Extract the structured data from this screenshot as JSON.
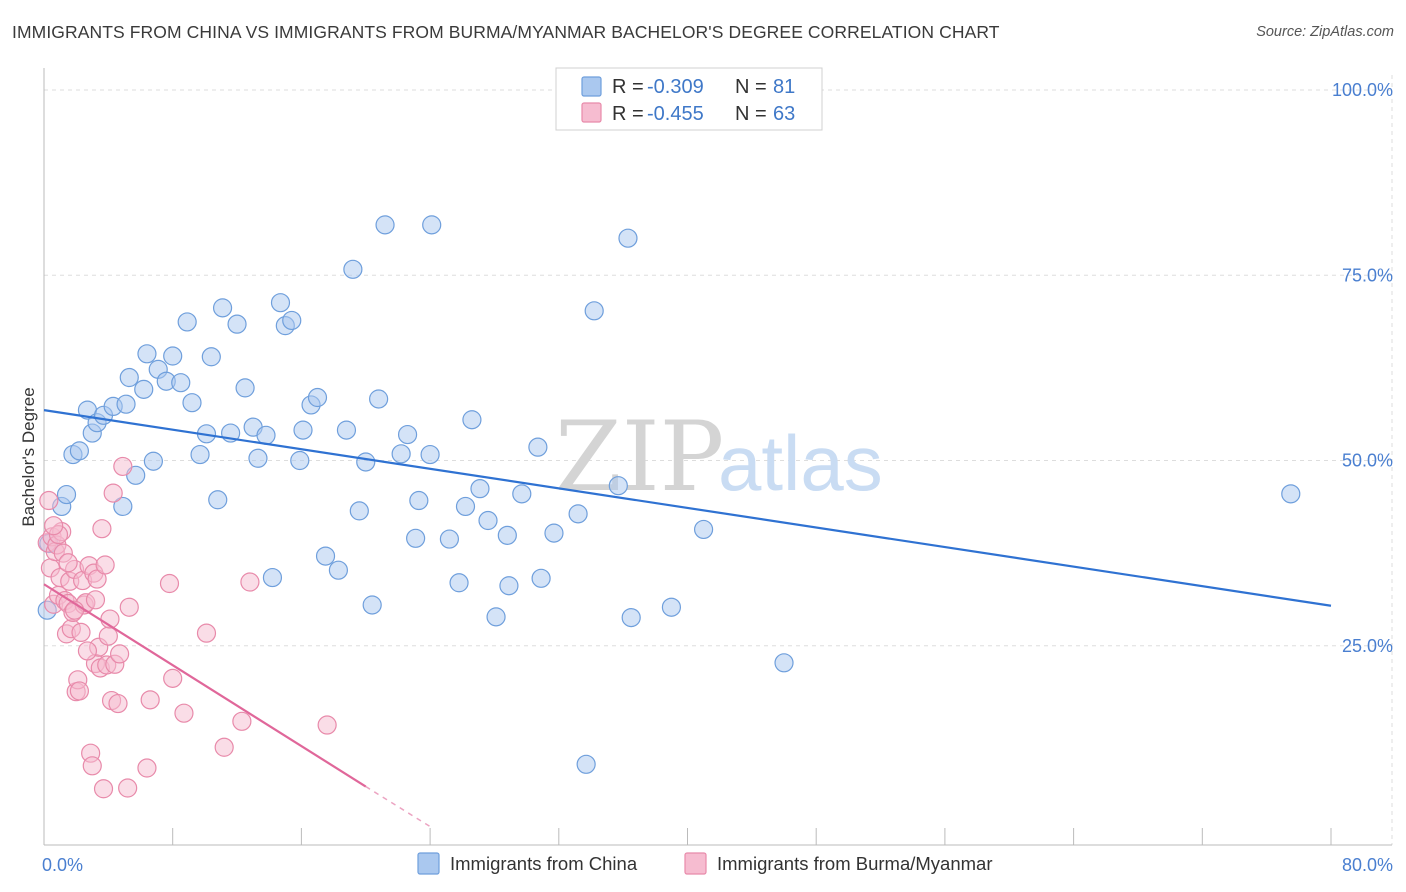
{
  "title": "IMMIGRANTS FROM CHINA VS IMMIGRANTS FROM BURMA/MYANMAR BACHELOR'S DEGREE CORRELATION CHART",
  "source": "Source: ZipAtlas.com",
  "watermark": {
    "zip": "ZIP",
    "atlas": "atlas"
  },
  "colors": {
    "china_fill": "#aac8ef",
    "china_stroke": "#6f9fdc",
    "china_line": "#2f72d2",
    "burma_fill": "#f6bcd0",
    "burma_stroke": "#e88aaa",
    "burma_line": "#e0679a",
    "tick_text": "#4a7fd0",
    "grid": "#dddddd"
  },
  "legend": {
    "rows": [
      {
        "r_label": "R = ",
        "r_value": "-0.309",
        "n_label": "N = ",
        "n_value": "81"
      },
      {
        "r_label": "R = ",
        "r_value": "-0.455",
        "n_label": "N = ",
        "n_value": "63"
      }
    ]
  },
  "chart_data": {
    "type": "scatter",
    "title": "IMMIGRANTS FROM CHINA VS IMMIGRANTS FROM BURMA/MYANMAR BACHELOR'S DEGREE CORRELATION CHART",
    "xlabel": "",
    "ylabel": "Bachelor's Degree",
    "xlim": [
      0,
      80
    ],
    "ylim": [
      0,
      100
    ],
    "x_tick_labels": [
      "0.0%",
      "80.0%"
    ],
    "y_ticks": [
      25,
      50,
      75,
      100
    ],
    "y_tick_labels": [
      "25.0%",
      "50.0%",
      "75.0%",
      "100.0%"
    ],
    "grid": true,
    "legend_position": "top-center",
    "series": [
      {
        "name": "Immigrants from China",
        "r": -0.309,
        "n": 81,
        "trend": {
          "x": [
            0,
            80
          ],
          "y": [
            56.8,
            30.4
          ]
        },
        "points": [
          [
            0.2,
            29.8
          ],
          [
            0.3,
            38.8
          ],
          [
            1.1,
            43.8
          ],
          [
            1.4,
            45.4
          ],
          [
            1.8,
            50.8
          ],
          [
            2.2,
            51.3
          ],
          [
            2.7,
            56.8
          ],
          [
            3.0,
            53.7
          ],
          [
            3.3,
            55.1
          ],
          [
            3.7,
            56.1
          ],
          [
            4.3,
            57.3
          ],
          [
            4.9,
            43.8
          ],
          [
            5.1,
            57.6
          ],
          [
            5.3,
            61.2
          ],
          [
            5.7,
            48.0
          ],
          [
            6.2,
            59.6
          ],
          [
            6.4,
            64.4
          ],
          [
            6.8,
            49.9
          ],
          [
            7.1,
            62.3
          ],
          [
            7.6,
            60.7
          ],
          [
            8.0,
            64.1
          ],
          [
            8.5,
            60.5
          ],
          [
            8.9,
            68.7
          ],
          [
            9.2,
            57.8
          ],
          [
            9.7,
            50.8
          ],
          [
            10.1,
            53.6
          ],
          [
            10.4,
            64.0
          ],
          [
            10.8,
            44.7
          ],
          [
            11.1,
            70.6
          ],
          [
            11.6,
            53.7
          ],
          [
            12.0,
            68.4
          ],
          [
            12.5,
            59.8
          ],
          [
            13.0,
            54.5
          ],
          [
            13.3,
            50.3
          ],
          [
            13.8,
            53.4
          ],
          [
            14.2,
            34.2
          ],
          [
            14.7,
            71.3
          ],
          [
            15.0,
            68.2
          ],
          [
            15.4,
            68.9
          ],
          [
            15.9,
            50.0
          ],
          [
            16.1,
            54.1
          ],
          [
            16.6,
            57.5
          ],
          [
            17.0,
            58.5
          ],
          [
            17.5,
            37.1
          ],
          [
            18.3,
            35.2
          ],
          [
            18.8,
            54.1
          ],
          [
            19.2,
            75.8
          ],
          [
            19.6,
            43.2
          ],
          [
            20.0,
            49.8
          ],
          [
            20.4,
            30.5
          ],
          [
            20.8,
            58.3
          ],
          [
            21.2,
            81.8
          ],
          [
            22.2,
            50.9
          ],
          [
            22.6,
            53.5
          ],
          [
            23.1,
            39.5
          ],
          [
            23.3,
            44.6
          ],
          [
            24.0,
            50.8
          ],
          [
            24.1,
            81.8
          ],
          [
            25.2,
            39.4
          ],
          [
            25.8,
            33.5
          ],
          [
            26.2,
            43.8
          ],
          [
            26.6,
            55.5
          ],
          [
            27.1,
            46.2
          ],
          [
            27.6,
            41.9
          ],
          [
            28.1,
            28.9
          ],
          [
            28.8,
            39.9
          ],
          [
            28.9,
            33.1
          ],
          [
            29.7,
            45.5
          ],
          [
            30.7,
            51.8
          ],
          [
            30.9,
            34.1
          ],
          [
            31.7,
            40.2
          ],
          [
            33.2,
            42.8
          ],
          [
            33.7,
            9.0
          ],
          [
            34.2,
            70.2
          ],
          [
            35.7,
            46.6
          ],
          [
            36.3,
            80.0
          ],
          [
            36.5,
            28.8
          ],
          [
            39.0,
            30.2
          ],
          [
            41.0,
            40.7
          ],
          [
            46.0,
            22.7
          ],
          [
            77.5,
            45.5
          ]
        ]
      },
      {
        "name": "Immigrants from Burma/Myanmar",
        "r": -0.455,
        "n": 63,
        "trend": {
          "x": [
            0,
            20
          ],
          "y": [
            33.3,
            6.0
          ]
        },
        "trend_dashed": {
          "x": [
            20,
            24
          ],
          "y": [
            6.0,
            0.6
          ]
        },
        "points": [
          [
            0.2,
            38.9
          ],
          [
            0.3,
            44.6
          ],
          [
            0.4,
            35.5
          ],
          [
            0.5,
            39.7
          ],
          [
            0.6,
            30.6
          ],
          [
            0.7,
            37.7
          ],
          [
            0.8,
            38.6
          ],
          [
            0.9,
            31.8
          ],
          [
            1.0,
            34.2
          ],
          [
            1.1,
            40.4
          ],
          [
            1.2,
            37.5
          ],
          [
            1.3,
            31.1
          ],
          [
            1.4,
            26.6
          ],
          [
            1.5,
            30.7
          ],
          [
            1.6,
            33.7
          ],
          [
            1.7,
            27.3
          ],
          [
            1.8,
            29.5
          ],
          [
            1.9,
            35.3
          ],
          [
            2.0,
            18.8
          ],
          [
            2.1,
            20.4
          ],
          [
            2.2,
            18.9
          ],
          [
            2.3,
            26.8
          ],
          [
            2.4,
            33.8
          ],
          [
            2.5,
            30.5
          ],
          [
            2.6,
            30.8
          ],
          [
            2.8,
            35.8
          ],
          [
            2.9,
            10.5
          ],
          [
            3.0,
            8.8
          ],
          [
            3.1,
            34.8
          ],
          [
            3.2,
            22.6
          ],
          [
            3.3,
            34.0
          ],
          [
            3.4,
            24.8
          ],
          [
            3.5,
            22.0
          ],
          [
            3.6,
            40.8
          ],
          [
            3.7,
            5.7
          ],
          [
            3.8,
            35.9
          ],
          [
            3.9,
            22.4
          ],
          [
            4.0,
            26.3
          ],
          [
            4.2,
            17.6
          ],
          [
            4.3,
            45.6
          ],
          [
            4.4,
            22.5
          ],
          [
            4.6,
            17.2
          ],
          [
            4.7,
            23.9
          ],
          [
            4.9,
            49.2
          ],
          [
            5.2,
            5.8
          ],
          [
            5.3,
            30.2
          ],
          [
            6.4,
            8.5
          ],
          [
            6.6,
            17.7
          ],
          [
            7.8,
            33.4
          ],
          [
            8.0,
            20.6
          ],
          [
            8.7,
            15.9
          ],
          [
            10.1,
            26.7
          ],
          [
            11.2,
            11.3
          ],
          [
            12.3,
            14.8
          ],
          [
            12.8,
            33.6
          ],
          [
            17.6,
            14.3
          ],
          [
            0.9,
            40.0
          ],
          [
            1.5,
            36.2
          ],
          [
            2.7,
            24.3
          ],
          [
            3.2,
            31.2
          ],
          [
            1.9,
            29.8
          ],
          [
            0.6,
            41.2
          ],
          [
            4.1,
            28.6
          ]
        ]
      }
    ]
  },
  "bottom_legend": [
    {
      "label": "Immigrants from China"
    },
    {
      "label": "Immigrants from Burma/Myanmar"
    }
  ]
}
